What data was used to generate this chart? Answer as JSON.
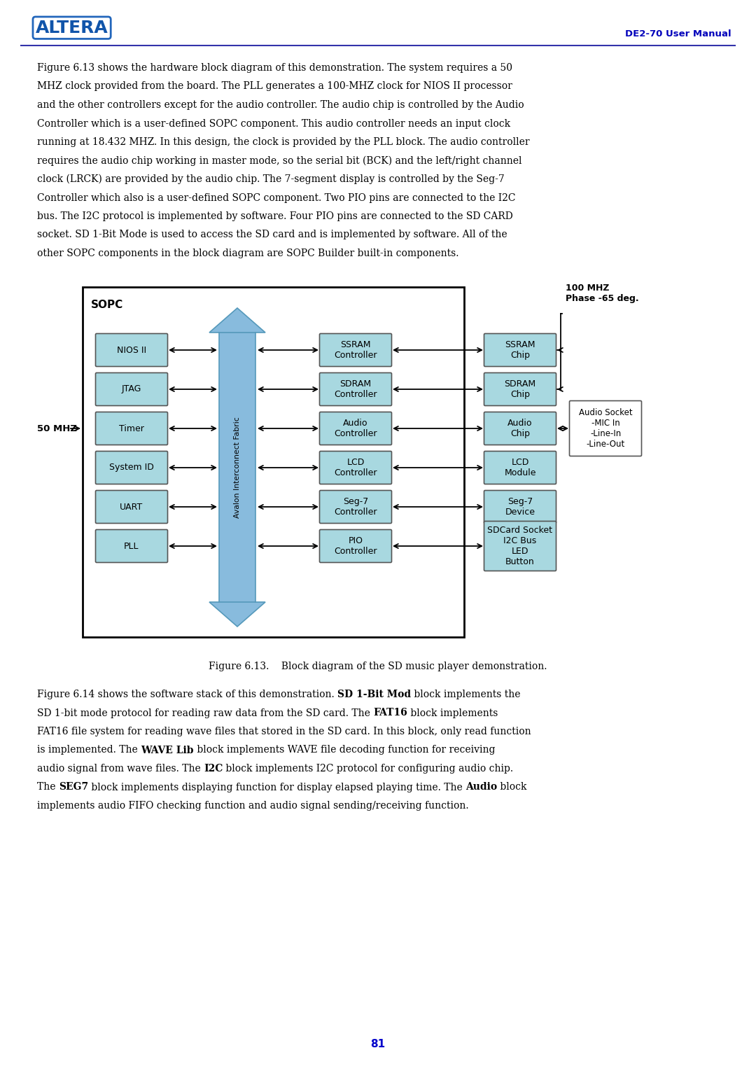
{
  "page_width": 10.8,
  "page_height": 15.27,
  "bg_color": "#ffffff",
  "header_line_color": "#3333aa",
  "header_text": "DE2-70 User Manual",
  "header_text_color": "#0000bb",
  "sopc_label": "SOPC",
  "left_blocks": [
    "NIOS II",
    "JTAG",
    "Timer",
    "System ID",
    "UART",
    "PLL"
  ],
  "middle_blocks": [
    "SSRAM\nController",
    "SDRAM\nController",
    "Audio\nController",
    "LCD\nController",
    "Seg-7\nController",
    "PIO\nController"
  ],
  "right_blocks": [
    "SSRAM\nChip",
    "SDRAM\nChip",
    "Audio\nChip",
    "LCD\nModule",
    "Seg-7\nDevice",
    "SDCard Socket\nI2C Bus\nLED\nButton"
  ],
  "fabric_label": "Avalon Interconnect Fabric",
  "clock_100mhz_label": "100 MHZ\nPhase -65 deg.",
  "clock_50mhz_label": "50 MHZ",
  "audio_socket_label": "Audio Socket\n-MIC In\n-Line-In\n-Line-Out",
  "figure_caption": "Figure 6.13.    Block diagram of the SD music player demonstration.",
  "page_number": "81",
  "page_number_color": "#0000cc",
  "block_fill": "#a8d8e0",
  "block_edge": "#555555",
  "arrow_fill": "#88bbdd",
  "arrow_edge": "#5599bb"
}
